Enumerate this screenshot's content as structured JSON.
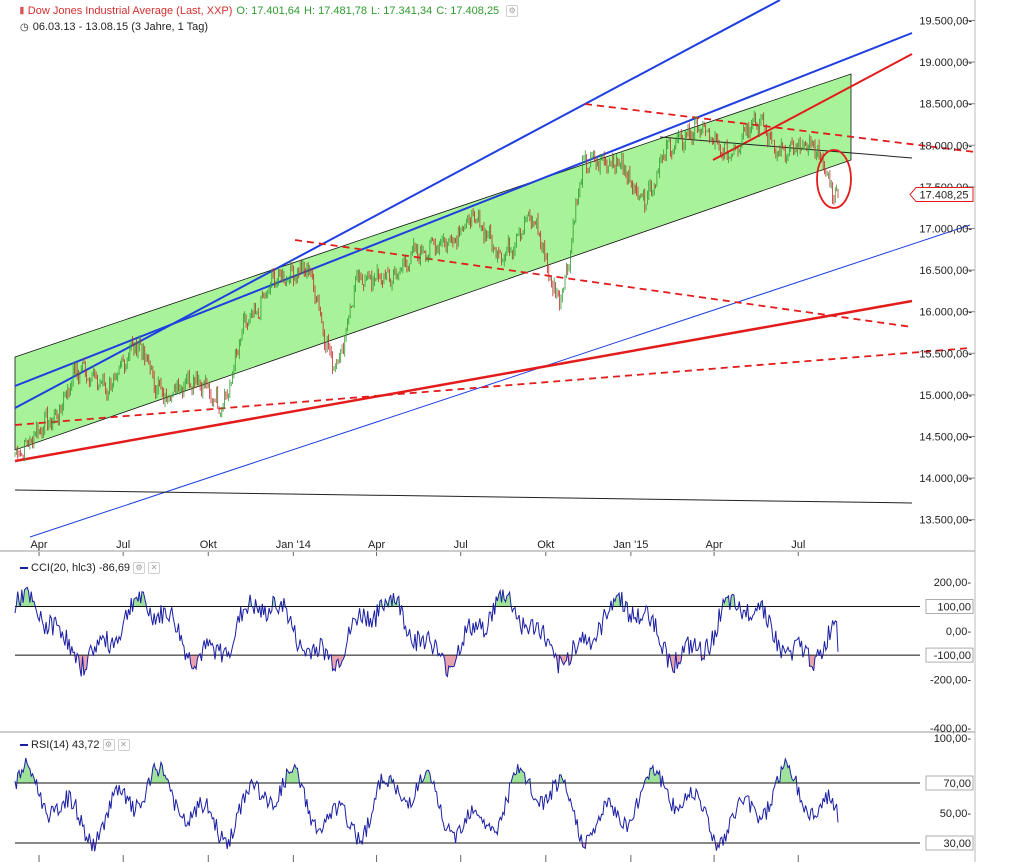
{
  "header": {
    "title": "Dow Jones Industrial Average (Last, XXP)",
    "open": "O: 17.401,64",
    "high": "H: 17.481,78",
    "low": "L: 17.341,34",
    "close": "C: 17.408,25",
    "range": "06.03.13 - 13.08.15 (3 Jahre, 1 Tag)"
  },
  "colors": {
    "title": "#d32f2f",
    "ohlc": "#2e9b2e",
    "channel_fill": "#a8f29a",
    "blue_line": "#1f3fe0",
    "red_line": "#e31b1b",
    "indicator_line": "#1b1fa3",
    "positive_fill": "#9fe39b",
    "negative_fill": "#e8a3ad"
  },
  "cci": {
    "label": "CCI(20, hlc3)",
    "value": "-86,69"
  },
  "rsi": {
    "label": "RSI(14)",
    "value": "43,72"
  },
  "chart_data": [
    {
      "type": "line",
      "name": "Dow Jones Industrial Average",
      "x": [
        "2013-03-06",
        "2013-04",
        "2013-05",
        "2013-06",
        "2013-07",
        "2013-08",
        "2013-09",
        "2013-10",
        "2013-11",
        "2013-12",
        "2014-01",
        "2014-02",
        "2014-03",
        "2014-04",
        "2014-05",
        "2014-06",
        "2014-07",
        "2014-08",
        "2014-09",
        "2014-10",
        "2014-11",
        "2014-12",
        "2015-01",
        "2015-02",
        "2015-03",
        "2015-04",
        "2015-05",
        "2015-06",
        "2015-07",
        "2015-08-13"
      ],
      "values": [
        14300,
        14700,
        15300,
        15100,
        15600,
        15000,
        15200,
        14900,
        15900,
        16400,
        16500,
        15400,
        16400,
        16400,
        16700,
        16850,
        17100,
        16700,
        17100,
        16200,
        17800,
        17800,
        17400,
        18000,
        18200,
        17900,
        18300,
        17900,
        18000,
        17408
      ],
      "xtick_labels": [
        "Apr",
        "Jul",
        "Okt",
        "Jan '14",
        "Apr",
        "Jul",
        "Okt",
        "Jan '15",
        "Apr",
        "Jul"
      ],
      "ytick_labels": [
        "19.500,00-",
        "19.000,00-",
        "18.500,00-",
        "18.000,00-",
        "17.500,00-",
        "17.000,00-",
        "16.500,00-",
        "16.000,00-",
        "15.500,00-",
        "15.000,00-",
        "14.500,00-",
        "14.000,00-",
        "13.500,00-"
      ],
      "ylim": [
        13400,
        19650
      ],
      "last_value_label": "17.408,25",
      "chart_style": "candlestick",
      "annotations": [
        "green trend channel",
        "blue trend lines",
        "red trend lines",
        "red dashed lines",
        "red circle around last bars"
      ]
    },
    {
      "type": "line",
      "name": "CCI(20, hlc3)",
      "ylim": [
        -400,
        250
      ],
      "ytick_labels": [
        "200,00-",
        "100,00",
        "0,00-",
        "-100,00",
        "-200,00-",
        "-400,00-"
      ],
      "reference_levels": [
        100,
        -100
      ],
      "last_value": -86.69
    },
    {
      "type": "line",
      "name": "RSI(14)",
      "ylim": [
        20,
        100
      ],
      "ytick_labels": [
        "100,00-",
        "70,00",
        "50,00-",
        "30,00"
      ],
      "reference_levels": [
        70,
        30
      ],
      "last_value": 43.72
    }
  ]
}
